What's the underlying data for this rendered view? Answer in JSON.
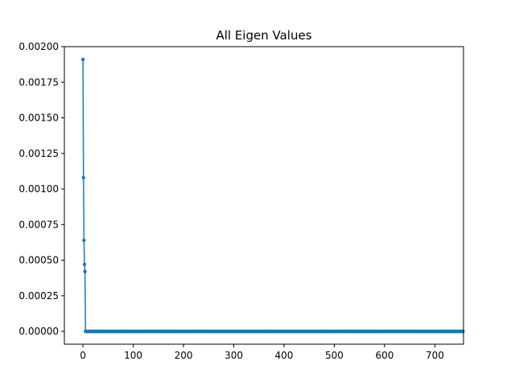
{
  "chart_data": {
    "type": "line",
    "title": "All Eigen Values",
    "xlabel": "",
    "ylabel": "",
    "xlim": [
      -37,
      757
    ],
    "ylim": [
      -9e-05,
      0.002
    ],
    "xticks": [
      0,
      100,
      200,
      300,
      400,
      500,
      600,
      700
    ],
    "xtick_labels": [
      "0",
      "100",
      "200",
      "300",
      "400",
      "500",
      "600",
      "700"
    ],
    "yticks": [
      0,
      0.00025,
      0.0005,
      0.00075,
      0.001,
      0.00125,
      0.0015,
      0.00175,
      0.002
    ],
    "ytick_labels": [
      "0.00000",
      "0.00025",
      "0.00050",
      "0.00075",
      "0.00100",
      "0.00125",
      "0.00150",
      "0.00175",
      "0.00200"
    ],
    "grid": false,
    "legend": "none",
    "series": [
      {
        "color": "#1f77b4",
        "marker": "circle",
        "x_start": 0,
        "x_end": 756,
        "head_values": [
          0.00191,
          0.00108,
          0.00064,
          0.00047,
          0.00042
        ],
        "tail_value": 0.0
      }
    ]
  }
}
